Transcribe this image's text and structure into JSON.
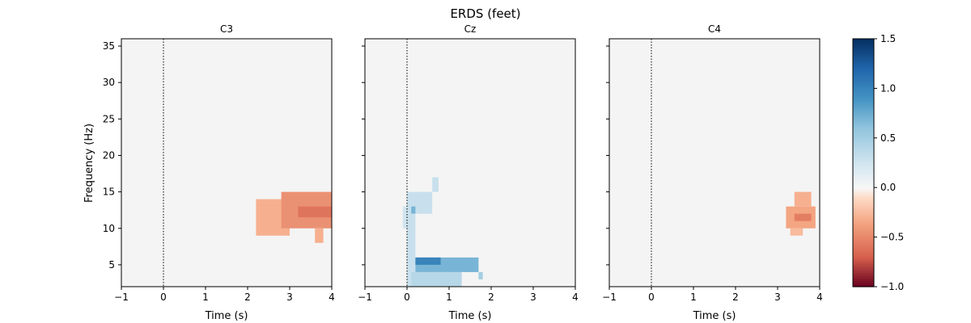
{
  "chart_data": {
    "type": "heatmap",
    "title": "ERDS (feet)",
    "ylabel": "Frequency (Hz)",
    "xlabel": "Time (s)",
    "xlim": [
      -1,
      4
    ],
    "ylim": [
      2,
      36
    ],
    "xticks": [
      -1,
      0,
      1,
      2,
      3,
      4
    ],
    "yticks": [
      5,
      10,
      15,
      20,
      25,
      30,
      35
    ],
    "event_line_x": 0,
    "colormap": "RdBu",
    "colorbar": {
      "min": -1.0,
      "max": 1.5,
      "ticks": [
        -1.0,
        -0.5,
        0.0,
        0.5,
        1.0,
        1.5
      ]
    },
    "background_color": "#f4f4f4",
    "panels": [
      {
        "channel": "C3",
        "regions": [
          {
            "t": [
              2.2,
              3.0
            ],
            "f": [
              9,
              14
            ],
            "value": -0.3
          },
          {
            "t": [
              2.8,
              4.0
            ],
            "f": [
              10,
              15
            ],
            "value": -0.45
          },
          {
            "t": [
              3.2,
              4.0
            ],
            "f": [
              11.5,
              13
            ],
            "value": -0.6
          },
          {
            "t": [
              3.6,
              3.8
            ],
            "f": [
              8,
              10
            ],
            "value": -0.3
          }
        ]
      },
      {
        "channel": "Cz",
        "regions": [
          {
            "t": [
              0.0,
              0.6
            ],
            "f": [
              12,
              15
            ],
            "value": 0.3
          },
          {
            "t": [
              0.1,
              0.2
            ],
            "f": [
              12,
              13
            ],
            "value": 0.7
          },
          {
            "t": [
              0.6,
              0.75
            ],
            "f": [
              15,
              17
            ],
            "value": 0.3
          },
          {
            "t": [
              -0.1,
              0.0
            ],
            "f": [
              10,
              13
            ],
            "value": 0.25
          },
          {
            "t": [
              0.0,
              0.2
            ],
            "f": [
              2,
              12
            ],
            "value": 0.3
          },
          {
            "t": [
              0.2,
              1.7
            ],
            "f": [
              4,
              6
            ],
            "value": 0.7
          },
          {
            "t": [
              0.2,
              0.8
            ],
            "f": [
              5,
              6
            ],
            "value": 1.0
          },
          {
            "t": [
              1.7,
              1.8
            ],
            "f": [
              3,
              4
            ],
            "value": 0.5
          },
          {
            "t": [
              0.1,
              1.3
            ],
            "f": [
              2,
              4
            ],
            "value": 0.4
          }
        ]
      },
      {
        "channel": "C4",
        "regions": [
          {
            "t": [
              3.2,
              3.9
            ],
            "f": [
              10,
              13
            ],
            "value": -0.35
          },
          {
            "t": [
              3.4,
              3.8
            ],
            "f": [
              11,
              12
            ],
            "value": -0.55
          },
          {
            "t": [
              3.4,
              3.8
            ],
            "f": [
              13,
              15
            ],
            "value": -0.3
          },
          {
            "t": [
              3.3,
              3.6
            ],
            "f": [
              9,
              10
            ],
            "value": -0.25
          }
        ]
      }
    ]
  }
}
